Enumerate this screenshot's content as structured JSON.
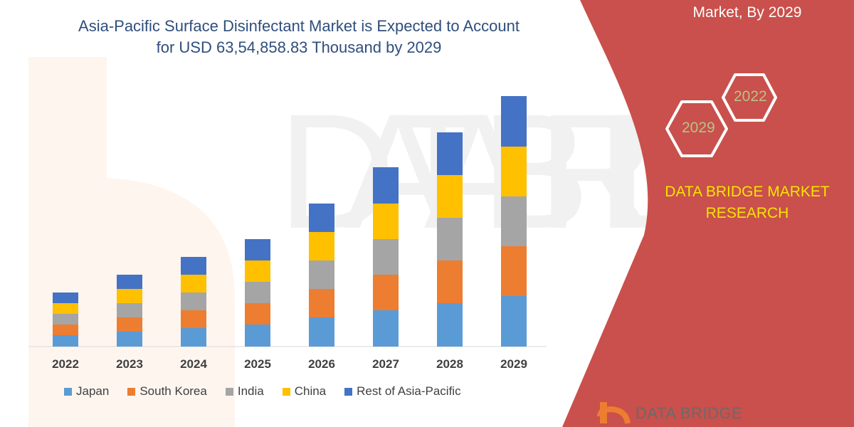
{
  "header": {
    "title_line1": "Asia-Pacific Surface Disinfectant Market is Expected to Account",
    "title_line2": "for USD 63,54,858.83 Thousand by 2029"
  },
  "side_panel": {
    "title": "Market, By 2029",
    "hex_2022": "2022",
    "hex_2029": "2029",
    "brand_line1": "DATA BRIDGE MARKET",
    "brand_line2": "RESEARCH",
    "logo_text": "DATA BRIDGE",
    "panel_color": "#c9504c",
    "brand_color": "#f5e400"
  },
  "chart_data": {
    "type": "bar",
    "stacked": true,
    "title": "Asia-Pacific Surface Disinfectant Market is Expected to Account for USD 63,54,858.83 Thousand by 2029",
    "categories": [
      "2022",
      "2023",
      "2024",
      "2025",
      "2026",
      "2027",
      "2028",
      "2029"
    ],
    "series": [
      {
        "name": "Japan",
        "color": "#5b9bd5",
        "values": [
          16,
          21,
          26,
          31,
          41,
          51,
          61,
          71
        ]
      },
      {
        "name": "South Korea",
        "color": "#ed7d31",
        "values": [
          15,
          20,
          25,
          30,
          40,
          50,
          60,
          70
        ]
      },
      {
        "name": "India",
        "color": "#a5a5a5",
        "values": [
          15,
          20,
          25,
          30,
          40,
          50,
          60,
          70
        ]
      },
      {
        "name": "China",
        "color": "#ffc000",
        "values": [
          15,
          20,
          25,
          30,
          40,
          50,
          60,
          70
        ]
      },
      {
        "name": "Rest of Asia-Pacific",
        "color": "#4472c4",
        "values": [
          15,
          20,
          25,
          30,
          40,
          51,
          60,
          71
        ]
      }
    ],
    "xlabel": "",
    "ylabel": "",
    "y_axis_shown": false,
    "grid": false,
    "legend_position": "bottom"
  }
}
